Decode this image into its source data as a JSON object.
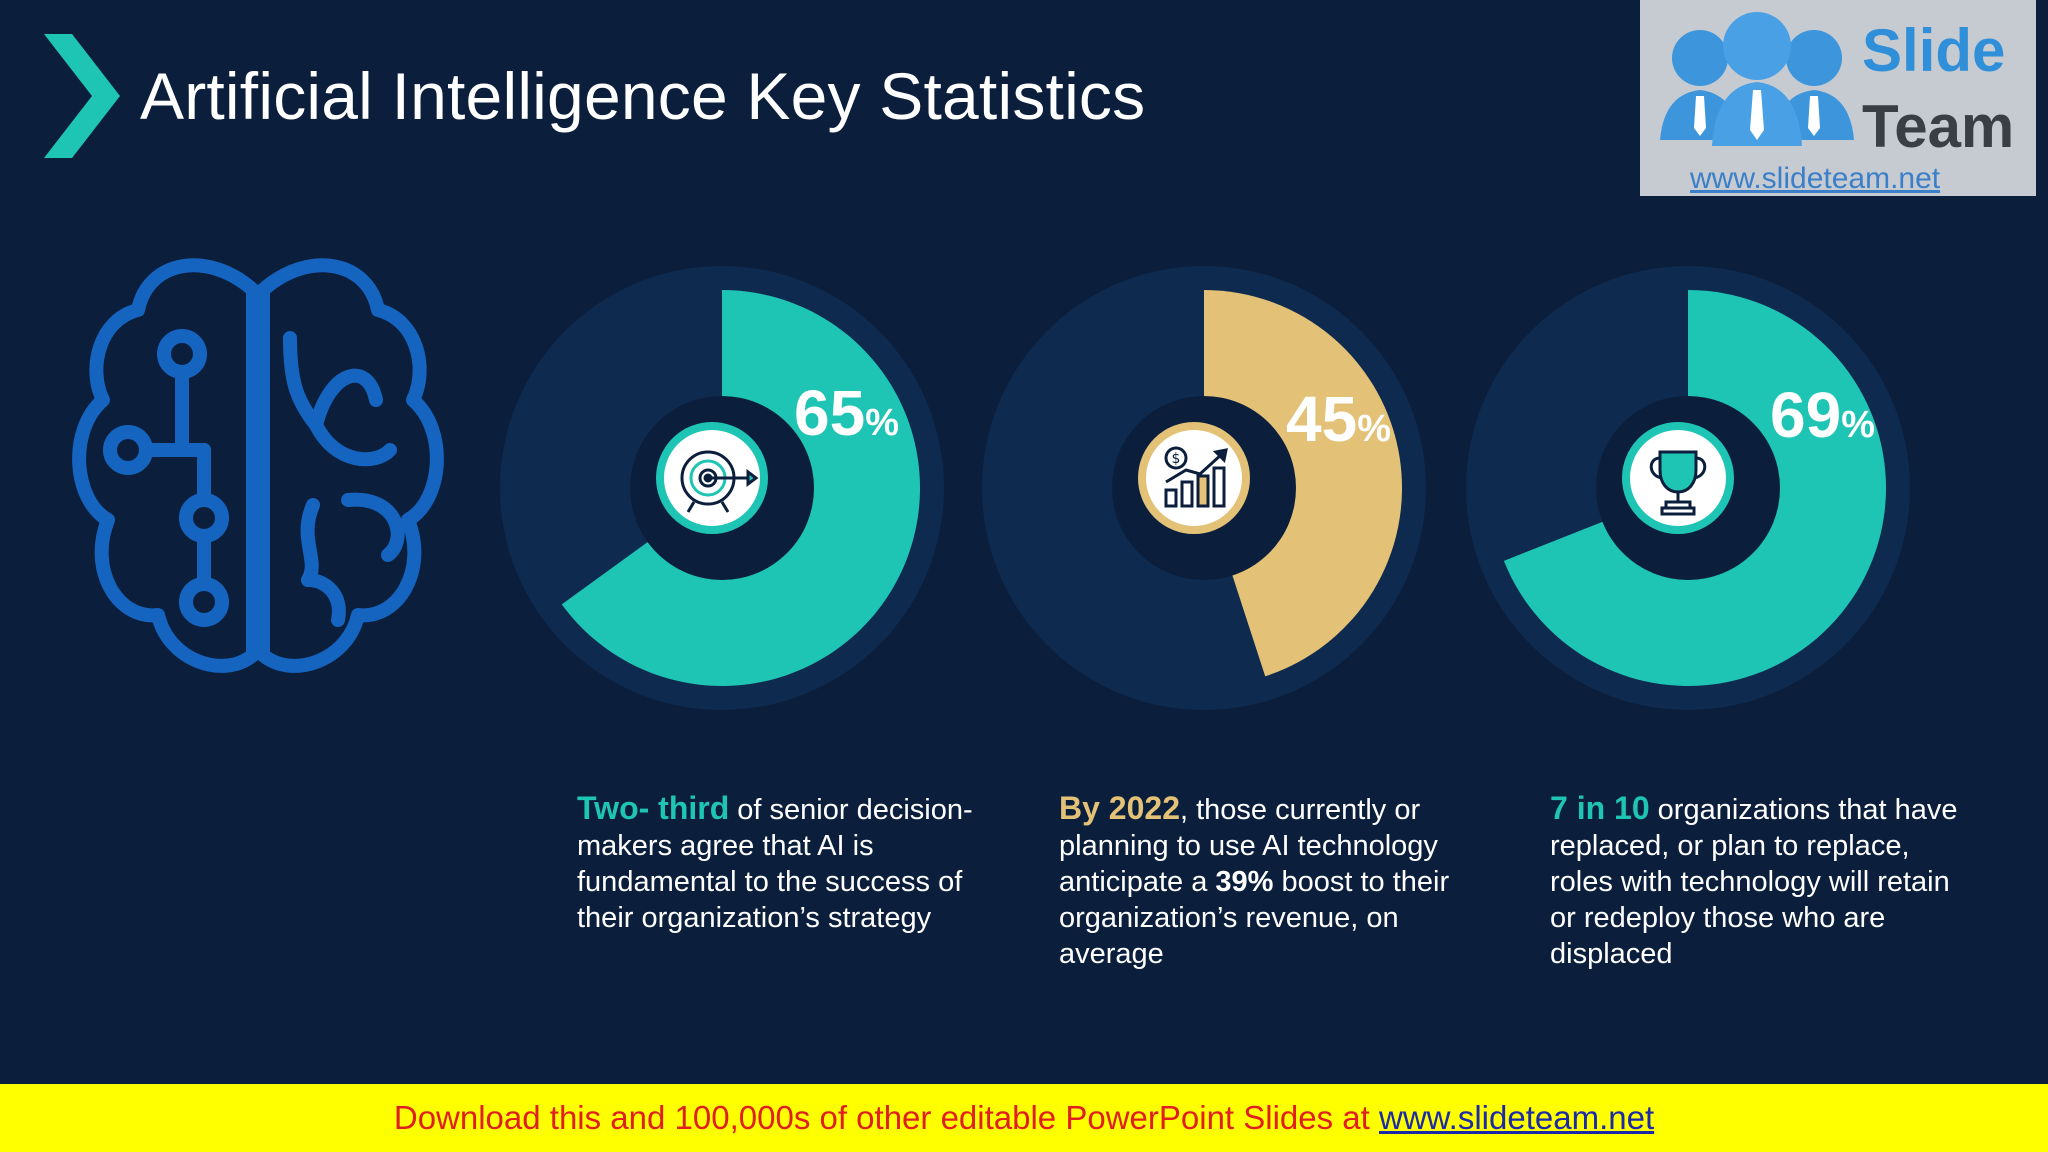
{
  "title": "Artificial Intelligence Key Statistics",
  "logo": {
    "word1": "Slide",
    "word2": "Team",
    "url": "www.slideteam.net"
  },
  "colors": {
    "background": "#0b1f3d",
    "teal": "#1fc5b4",
    "gold": "#e3c277",
    "brain": "#1565c0"
  },
  "stats": [
    {
      "value": 65,
      "value_text": "65",
      "sign": "%",
      "color": "#1fc5b4",
      "icon": "target-icon",
      "highlight": "Two- third",
      "text": " of senior decision- makers agree that AI is fundamental to the success of their organization’s strategy"
    },
    {
      "value": 45,
      "value_text": "45",
      "sign": "%",
      "color": "#e3c277",
      "icon": "growth-chart-icon",
      "highlight": "By 2022",
      "text_a": ", those currently or planning to use AI technology anticipate a ",
      "bold": "39%",
      "text_b": " boost to their organization’s revenue, on average"
    },
    {
      "value": 69,
      "value_text": "69",
      "sign": "%",
      "color": "#1fc5b4",
      "icon": "trophy-icon",
      "highlight": "7 in 10",
      "text": " organizations that have replaced, or plan to replace, roles with technology will retain or redeploy those who are displaced"
    }
  ],
  "footer": {
    "text": "Download this and 100,000s of other editable PowerPoint Slides at ",
    "link": "www.slideteam.net"
  }
}
